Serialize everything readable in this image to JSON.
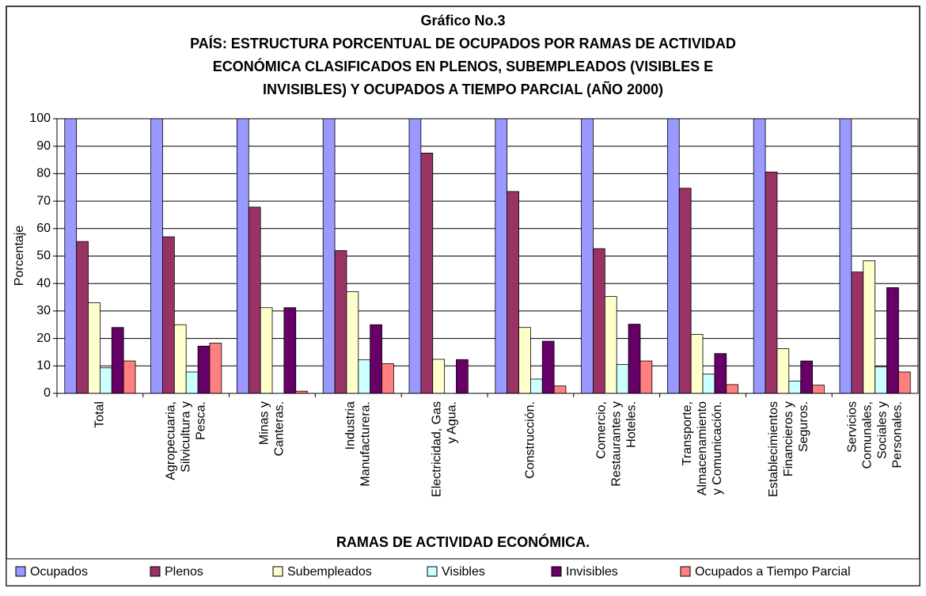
{
  "chart_data": {
    "type": "bar",
    "title": [
      "Gráfico No.3",
      "PAÍS: ESTRUCTURA PORCENTUAL DE  OCUPADOS POR RAMAS DE ACTIVIDAD",
      "ECONÓMICA CLASIFICADOS EN PLENOS, SUBEMPLEADOS (VISIBLES E",
      "INVISIBLES) Y OCUPADOS A TIEMPO PARCIAL (AÑO 2000)"
    ],
    "y_label": "Porcentaje",
    "x_label": "RAMAS DE ACTIVIDAD ECONÓMICA.",
    "categories": [
      [
        "Total"
      ],
      [
        "Agropecuaria,",
        "Silvicultura y",
        "Pesca."
      ],
      [
        "Minas y",
        "Canteras."
      ],
      [
        "Industria",
        "Manufacturera."
      ],
      [
        "Electricidad, Gas",
        "y Agua."
      ],
      [
        "Construcción."
      ],
      [
        "Comercio,",
        "Restaurantes y",
        "Hoteles."
      ],
      [
        "Transporte,",
        "Almacenamiento",
        "y Comunicación."
      ],
      [
        "Establecimientos",
        "Financieros y",
        "Seguros."
      ],
      [
        "Servicios",
        "Comunales,",
        "Sociales y",
        "Personales."
      ]
    ],
    "series": [
      {
        "name": "Ocupados",
        "color": "#9999ff",
        "values": [
          100,
          100,
          100,
          100,
          100,
          100,
          100,
          100,
          100,
          100
        ]
      },
      {
        "name": "Plenos",
        "color": "#993366",
        "values": [
          55.3,
          57,
          67.8,
          52,
          87.5,
          73.5,
          52.7,
          74.7,
          80.6,
          44.2
        ]
      },
      {
        "name": "Subempleados",
        "color": "#ffffcc",
        "values": [
          33,
          25,
          31.2,
          37,
          12.4,
          24,
          35.3,
          21.5,
          16.3,
          48.3
        ]
      },
      {
        "name": "Visibles",
        "color": "#ccffff",
        "values": [
          9.3,
          7.8,
          0,
          12.2,
          0,
          5.2,
          10.5,
          7,
          4.5,
          9.7
        ]
      },
      {
        "name": "Invisibles",
        "color": "#660066",
        "values": [
          24,
          17.2,
          31.2,
          25,
          12.3,
          19,
          25.2,
          14.5,
          11.8,
          38.5
        ]
      },
      {
        "name": "Ocupados a Tiempo Parcial",
        "color": "#ff8080",
        "values": [
          11.8,
          18.3,
          0.8,
          10.8,
          0,
          2.7,
          11.8,
          3.2,
          3,
          7.8
        ]
      }
    ],
    "ylim": [
      0,
      100
    ],
    "yticks": [
      0,
      10,
      20,
      30,
      40,
      50,
      60,
      70,
      80,
      90,
      100
    ],
    "grid": true,
    "legend": "bottom"
  }
}
